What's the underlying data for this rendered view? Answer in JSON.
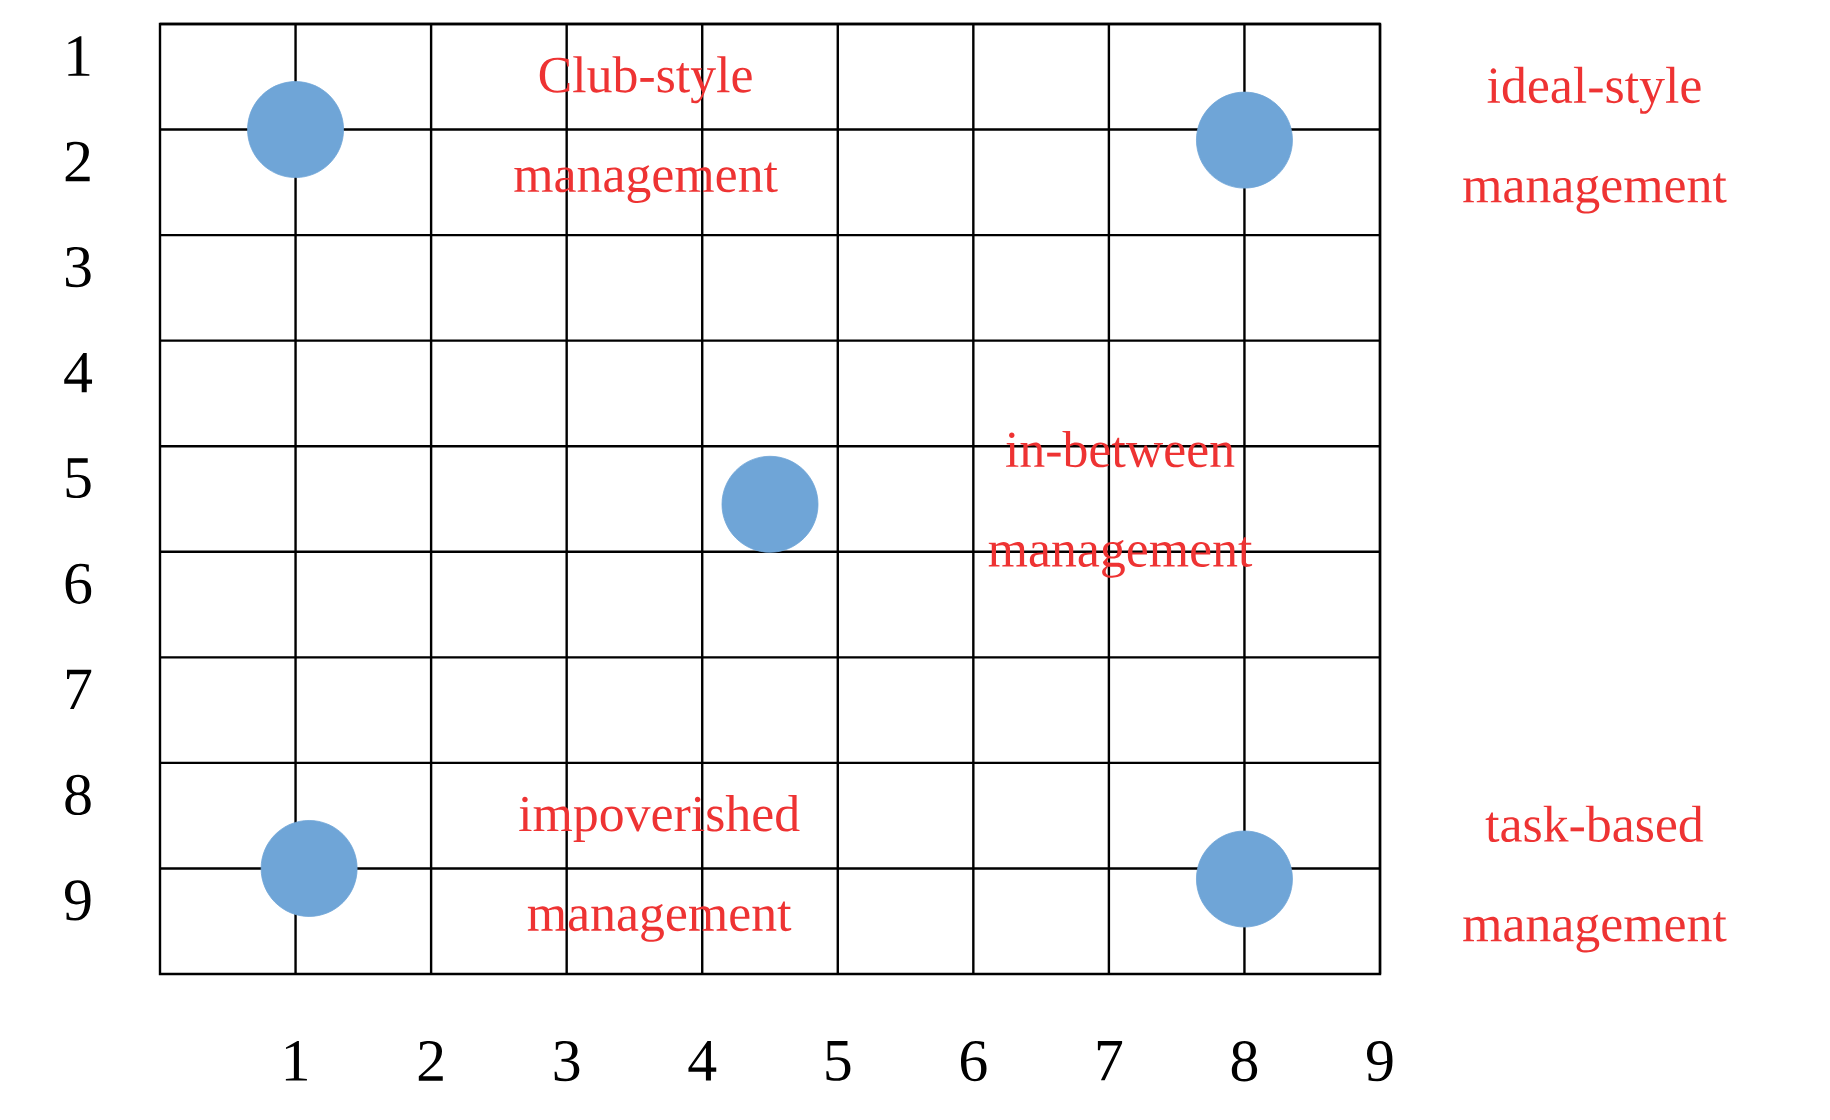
{
  "chart_data": {
    "type": "scatter",
    "grid": true,
    "series": [
      {
        "name": "Club-style management",
        "color": "#6fa5d7",
        "x": [
          1.0
        ],
        "values": [
          2.0
        ]
      },
      {
        "name": "ideal-style management",
        "color": "#6fa5d7",
        "x": [
          8.0
        ],
        "values": [
          2.1
        ]
      },
      {
        "name": "in-between management",
        "color": "#6fa5d7",
        "x": [
          4.5
        ],
        "values": [
          5.55
        ]
      },
      {
        "name": "impoverished management",
        "color": "#6fa5d7",
        "x": [
          1.1
        ],
        "values": [
          9.0
        ]
      },
      {
        "name": "task-based management",
        "color": "#6fa5d7",
        "x": [
          8.0
        ],
        "values": [
          9.1
        ]
      }
    ],
    "xlim": [
      0,
      9
    ],
    "xticks": [
      1,
      2,
      3,
      4,
      5,
      6,
      7,
      8,
      9
    ],
    "ylim": [
      10,
      1
    ],
    "yticks": [
      1,
      2,
      3,
      4,
      5,
      6,
      7,
      8,
      9
    ]
  }
}
